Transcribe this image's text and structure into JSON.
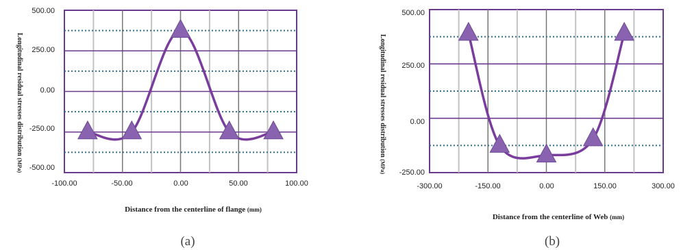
{
  "chart_data": [
    {
      "type": "line",
      "caption": "(a)",
      "xlabel": "Distance from the centerline of flange",
      "xlabel_unit": "(mm)",
      "ylabel": "Longitudinal residual stresses distribution",
      "ylabel_unit": "(MPa)",
      "xlim": [
        -100,
        100
      ],
      "ylim": [
        -500,
        500
      ],
      "x_ticks": [
        "-100.00",
        "-50.00",
        "0.00",
        "50.00",
        "100.00"
      ],
      "y_ticks": [
        "500.00",
        "250.00",
        "0.00",
        "-250.00",
        "-500.00"
      ],
      "series": [
        {
          "x": [
            -80,
            -42,
            0,
            42,
            80
          ],
          "y": [
            -250,
            -250,
            375,
            -250,
            -250
          ]
        }
      ],
      "colors": {
        "line": "#7a3d9e",
        "marker": "#8a63b0",
        "frame": "#6a3a8e"
      }
    },
    {
      "type": "line",
      "caption": "(b)",
      "xlabel": "Distance from the centerline of Web",
      "xlabel_unit": "(mm)",
      "ylabel": "Longitudinal residual stresses distribution",
      "ylabel_unit": "(MPa)",
      "xlim": [
        -300,
        300
      ],
      "ylim": [
        -250,
        500
      ],
      "x_ticks": [
        "-300.00",
        "-150.00",
        "0.00",
        "150.00",
        "300.00"
      ],
      "y_ticks": [
        "500.00",
        "250.00",
        "0.00",
        "-250.00"
      ],
      "series": [
        {
          "x": [
            -200,
            -120,
            0,
            120,
            200
          ],
          "y": [
            390,
            -125,
            -170,
            -95,
            390
          ]
        }
      ],
      "colors": {
        "line": "#7a3d9e",
        "marker": "#8a63b0",
        "frame": "#6a3a8e"
      }
    }
  ]
}
